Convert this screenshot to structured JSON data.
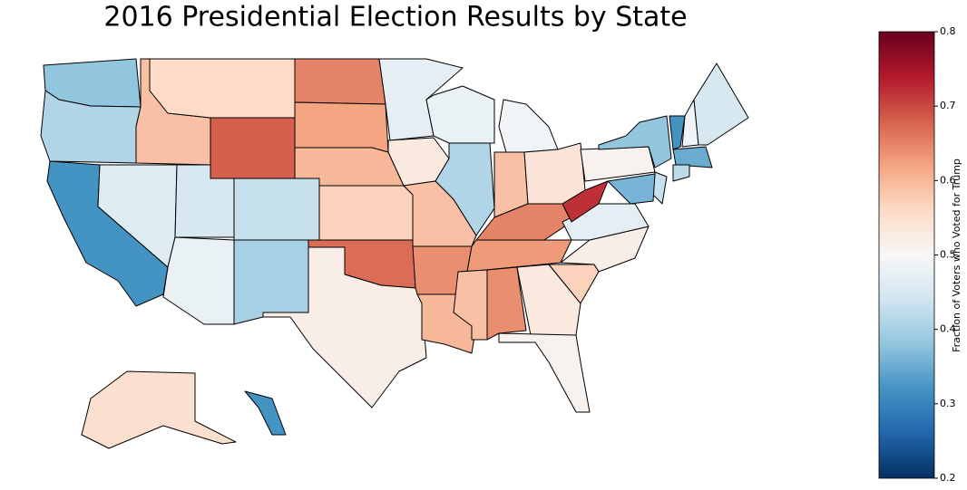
{
  "chart_data": {
    "type": "choropleth",
    "title": "2016 Presidential Election Results by State",
    "colorbar_label": "Fraction of Voters who Voted for Trump",
    "clim": [
      0.2,
      0.8
    ],
    "cticks": [
      0.2,
      0.3,
      0.4,
      0.5,
      0.6,
      0.7,
      0.8
    ],
    "colors": [
      "#053061",
      "#2166ac",
      "#4393c3",
      "#92c5de",
      "#d1e5f0",
      "#f7f7f7",
      "#fddbc7",
      "#f4a582",
      "#d6604d",
      "#b2182b",
      "#67001f"
    ],
    "values": [
      0.38,
      0.41,
      0.32,
      0.46,
      0.59,
      0.56,
      0.68,
      0.45,
      0.43,
      0.48,
      0.4,
      0.65,
      0.62,
      0.6,
      0.57,
      0.67,
      0.52,
      0.47,
      0.53,
      0.59,
      0.64,
      0.6,
      0.48,
      0.41,
      0.49,
      0.59,
      0.54,
      0.65,
      0.63,
      0.59,
      0.64,
      0.53,
      0.51,
      0.57,
      0.52,
      0.47,
      0.72,
      0.51,
      0.38,
      0.32,
      0.49,
      0.45,
      0.35,
      0.42,
      0.43,
      0.36,
      0.55,
      0.32
    ]
  }
}
